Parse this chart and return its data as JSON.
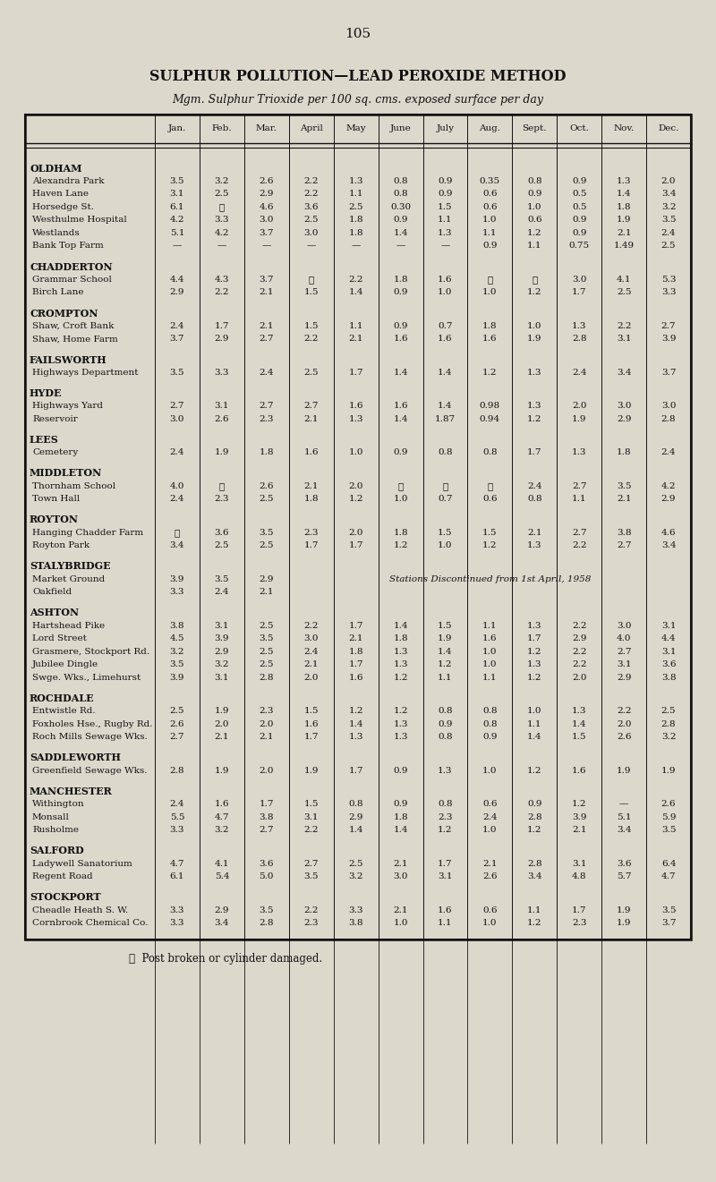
{
  "page_number": "105",
  "title": "SULPHUR POLLUTION—LEAD PEROXIDE METHOD",
  "subtitle": "Mgm. Sulphur Trioxide per 100 sq. cms. exposed surface per day",
  "col_headers": [
    "",
    "Jan.",
    "Feb.",
    "Mar.",
    "April",
    "May",
    "June",
    "July",
    "Aug.",
    "Sept.",
    "Oct.",
    "Nov.",
    "Dec."
  ],
  "footnote": "❖  Post broken or cylinder damaged.",
  "sections": [
    {
      "section": "OLDHAM",
      "rows": [
        [
          "Alexandra Park",
          "3.5",
          "3.2",
          "2.6",
          "2.2",
          "1.3",
          "0.8",
          "0.9",
          "0.35",
          "0.8",
          "0.9",
          "1.3",
          "2.0"
        ],
        [
          "Haven Lane",
          "3.1",
          "2.5",
          "2.9",
          "2.2",
          "1.1",
          "0.8",
          "0.9",
          "0.6",
          "0.9",
          "0.5",
          "1.4",
          "3.4"
        ],
        [
          "Horsedge St.",
          "6.1",
          "❖",
          "4.6",
          "3.6",
          "2.5",
          "0.30",
          "1.5",
          "0.6",
          "1.0",
          "0.5",
          "1.8",
          "3.2"
        ],
        [
          "Westhulme Hospital",
          "4.2",
          "3.3",
          "3.0",
          "2.5",
          "1.8",
          "0.9",
          "1.1",
          "1.0",
          "0.6",
          "0.9",
          "1.9",
          "3.5"
        ],
        [
          "Westlands",
          "5.1",
          "4.2",
          "3.7",
          "3.0",
          "1.8",
          "1.4",
          "1.3",
          "1.1",
          "1.2",
          "0.9",
          "2.1",
          "2.4"
        ],
        [
          "Bank Top Farm",
          "—",
          "—",
          "—",
          "—",
          "—",
          "—",
          "—",
          "0.9",
          "1.1",
          "0.75",
          "1.49",
          "2.5"
        ]
      ]
    },
    {
      "section": "CHADDERTON",
      "rows": [
        [
          "Grammar School",
          "4.4",
          "4.3",
          "3.7",
          "❖",
          "2.2",
          "1.8",
          "1.6",
          "❖",
          "❖",
          "3.0",
          "4.1",
          "5.3"
        ],
        [
          "Birch Lane",
          "2.9",
          "2.2",
          "2.1",
          "1.5",
          "1.4",
          "0.9",
          "1.0",
          "1.0",
          "1.2",
          "1.7",
          "2.5",
          "3.3"
        ]
      ]
    },
    {
      "section": "CROMPTON",
      "rows": [
        [
          "Shaw, Croft Bank",
          "2.4",
          "1.7",
          "2.1",
          "1.5",
          "1.1",
          "0.9",
          "0.7",
          "1.8",
          "1.0",
          "1.3",
          "2.2",
          "2.7"
        ],
        [
          "Shaw, Home Farm",
          "3.7",
          "2.9",
          "2.7",
          "2.2",
          "2.1",
          "1.6",
          "1.6",
          "1.6",
          "1.9",
          "2.8",
          "3.1",
          "3.9"
        ]
      ]
    },
    {
      "section": "FAILSWORTH",
      "rows": [
        [
          "Highways Department",
          "3.5",
          "3.3",
          "2.4",
          "2.5",
          "1.7",
          "1.4",
          "1.4",
          "1.2",
          "1.3",
          "2.4",
          "3.4",
          "3.7"
        ]
      ]
    },
    {
      "section": "HYDE",
      "rows": [
        [
          "Highways Yard",
          "2.7",
          "3.1",
          "2.7",
          "2.7",
          "1.6",
          "1.6",
          "1.4",
          "0.98",
          "1.3",
          "2.0",
          "3.0",
          "3.0"
        ],
        [
          "Reservoir",
          "3.0",
          "2.6",
          "2.3",
          "2.1",
          "1.3",
          "1.4",
          "1.87",
          "0.94",
          "1.2",
          "1.9",
          "2.9",
          "2.8"
        ]
      ]
    },
    {
      "section": "LEES",
      "rows": [
        [
          "Cemetery",
          "2.4",
          "1.9",
          "1.8",
          "1.6",
          "1.0",
          "0.9",
          "0.8",
          "0.8",
          "1.7",
          "1.3",
          "1.8",
          "2.4"
        ]
      ]
    },
    {
      "section": "MIDDLETON",
      "rows": [
        [
          "Thornham School",
          "4.0",
          "❖",
          "2.6",
          "2.1",
          "2.0",
          "❖",
          "❖",
          "❖",
          "2.4",
          "2.7",
          "3.5",
          "4.2"
        ],
        [
          "Town Hall",
          "2.4",
          "2.3",
          "2.5",
          "1.8",
          "1.2",
          "1.0",
          "0.7",
          "0.6",
          "0.8",
          "1.1",
          "2.1",
          "2.9"
        ]
      ]
    },
    {
      "section": "ROYTON",
      "rows": [
        [
          "Hanging Chadder Farm",
          "❖",
          "3.6",
          "3.5",
          "2.3",
          "2.0",
          "1.8",
          "1.5",
          "1.5",
          "2.1",
          "2.7",
          "3.8",
          "4.6"
        ],
        [
          "Royton Park",
          "3.4",
          "2.5",
          "2.5",
          "1.7",
          "1.7",
          "1.2",
          "1.0",
          "1.2",
          "1.3",
          "2.2",
          "2.7",
          "3.4"
        ]
      ]
    },
    {
      "section": "STALYBRIDGE",
      "rows": [
        [
          "Market Ground",
          "3.9",
          "3.5",
          "2.9",
          "",
          "",
          "",
          "",
          "",
          "",
          "",
          "",
          ""
        ],
        [
          "Oakfield",
          "3.3",
          "2.4",
          "2.1",
          "",
          "",
          "",
          "",
          "",
          "",
          "",
          "",
          ""
        ]
      ],
      "discontinued_note": "Stations Discontinued from 1st April, 1958"
    },
    {
      "section": "ASHTON",
      "rows": [
        [
          "Hartshead Pike",
          "3.8",
          "3.1",
          "2.5",
          "2.2",
          "1.7",
          "1.4",
          "1.5",
          "1.1",
          "1.3",
          "2.2",
          "3.0",
          "3.1"
        ],
        [
          "Lord Street",
          "4.5",
          "3.9",
          "3.5",
          "3.0",
          "2.1",
          "1.8",
          "1.9",
          "1.6",
          "1.7",
          "2.9",
          "4.0",
          "4.4"
        ],
        [
          "Grasmere, Stockport Rd.",
          "3.2",
          "2.9",
          "2.5",
          "2.4",
          "1.8",
          "1.3",
          "1.4",
          "1.0",
          "1.2",
          "2.2",
          "2.7",
          "3.1"
        ],
        [
          "Jubilee Dingle",
          "3.5",
          "3.2",
          "2.5",
          "2.1",
          "1.7",
          "1.3",
          "1.2",
          "1.0",
          "1.3",
          "2.2",
          "3.1",
          "3.6"
        ],
        [
          "Swge. Wks., Limehurst",
          "3.9",
          "3.1",
          "2.8",
          "2.0",
          "1.6",
          "1.2",
          "1.1",
          "1.1",
          "1.2",
          "2.0",
          "2.9",
          "3.8"
        ]
      ]
    },
    {
      "section": "ROCHDALE",
      "rows": [
        [
          "Entwistle Rd.",
          "2.5",
          "1.9",
          "2.3",
          "1.5",
          "1.2",
          "1.2",
          "0.8",
          "0.8",
          "1.0",
          "1.3",
          "2.2",
          "2.5"
        ],
        [
          "Foxholes Hse., Rugby Rd.",
          "2.6",
          "2.0",
          "2.0",
          "1.6",
          "1.4",
          "1.3",
          "0.9",
          "0.8",
          "1.1",
          "1.4",
          "2.0",
          "2.8"
        ],
        [
          "Roch Mills Sewage Wks.",
          "2.7",
          "2.1",
          "2.1",
          "1.7",
          "1.3",
          "1.3",
          "0.8",
          "0.9",
          "1.4",
          "1.5",
          "2.6",
          "3.2"
        ]
      ]
    },
    {
      "section": "SADDLEWORTH",
      "rows": [
        [
          "Greenfield Sewage Wks.",
          "2.8",
          "1.9",
          "2.0",
          "1.9",
          "1.7",
          "0.9",
          "1.3",
          "1.0",
          "1.2",
          "1.6",
          "1.9",
          "1.9"
        ]
      ]
    },
    {
      "section": "MANCHESTER",
      "rows": [
        [
          "Withington",
          "2.4",
          "1.6",
          "1.7",
          "1.5",
          "0.8",
          "0.9",
          "0.8",
          "0.6",
          "0.9",
          "1.2",
          "—",
          "2.6"
        ],
        [
          "Monsall",
          "5.5",
          "4.7",
          "3.8",
          "3.1",
          "2.9",
          "1.8",
          "2.3",
          "2.4",
          "2.8",
          "3.9",
          "5.1",
          "5.9"
        ],
        [
          "Rusholme",
          "3.3",
          "3.2",
          "2.7",
          "2.2",
          "1.4",
          "1.4",
          "1.2",
          "1.0",
          "1.2",
          "2.1",
          "3.4",
          "3.5"
        ]
      ]
    },
    {
      "section": "SALFORD",
      "rows": [
        [
          "Ladywell Sanatorium",
          "4.7",
          "4.1",
          "3.6",
          "2.7",
          "2.5",
          "2.1",
          "1.7",
          "2.1",
          "2.8",
          "3.1",
          "3.6",
          "6.4"
        ],
        [
          "Regent Road",
          "6.1",
          "5.4",
          "5.0",
          "3.5",
          "3.2",
          "3.0",
          "3.1",
          "2.6",
          "3.4",
          "4.8",
          "5.7",
          "4.7"
        ]
      ]
    },
    {
      "section": "STOCKPORT",
      "rows": [
        [
          "Cheadle Heath S. W.",
          "3.3",
          "2.9",
          "3.5",
          "2.2",
          "3.3",
          "2.1",
          "1.6",
          "0.6",
          "1.1",
          "1.7",
          "1.9",
          "3.5"
        ],
        [
          "Cornbrook Chemical Co.",
          "3.3",
          "3.4",
          "2.8",
          "2.3",
          "3.8",
          "1.0",
          "1.1",
          "1.0",
          "1.2",
          "2.3",
          "1.9",
          "3.7"
        ]
      ]
    }
  ],
  "bg_color": "#ddd8cc",
  "text_color": "#111111",
  "table_border_color": "#111111"
}
